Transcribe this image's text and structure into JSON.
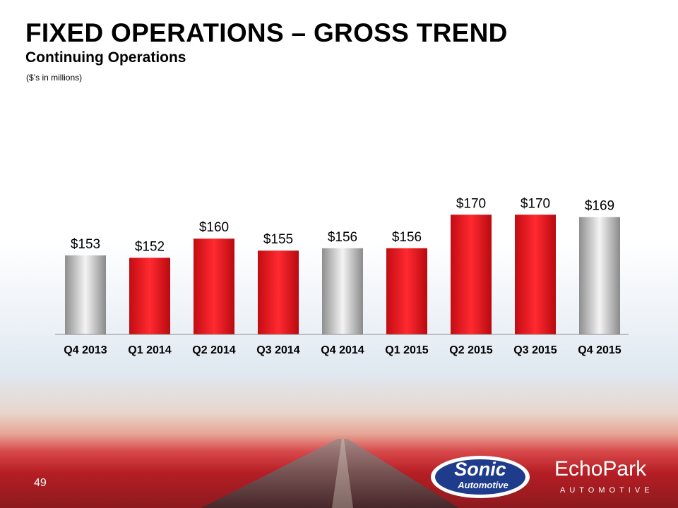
{
  "slide": {
    "title": "FIXED OPERATIONS – GROSS TREND",
    "subtitle": "Continuing Operations",
    "units_note": "($’s in millions)",
    "page_number": "49"
  },
  "logos": {
    "sonic_text": "Sonic",
    "sonic_sub": "Automotive",
    "echopark_text": "EchoPark",
    "echopark_sub": "AUTOMOTIVE"
  },
  "colors": {
    "red": "#e8141b",
    "gray": "#b8b8b8"
  },
  "chart_data": {
    "type": "bar",
    "categories": [
      "Q4 2013",
      "Q1 2014",
      "Q2 2014",
      "Q3 2014",
      "Q4 2014",
      "Q1 2015",
      "Q2 2015",
      "Q3 2015",
      "Q4 2015"
    ],
    "values": [
      153,
      152,
      160,
      155,
      156,
      156,
      170,
      170,
      169
    ],
    "labels": [
      "$153",
      "$152",
      "$160",
      "$155",
      "$156",
      "$156",
      "$170",
      "$170",
      "$169"
    ],
    "bar_colors": [
      "gray",
      "red",
      "red",
      "red",
      "gray",
      "red",
      "red",
      "red",
      "gray"
    ],
    "title": "",
    "xlabel": "",
    "ylabel": "",
    "grid": false,
    "legend": "none"
  }
}
